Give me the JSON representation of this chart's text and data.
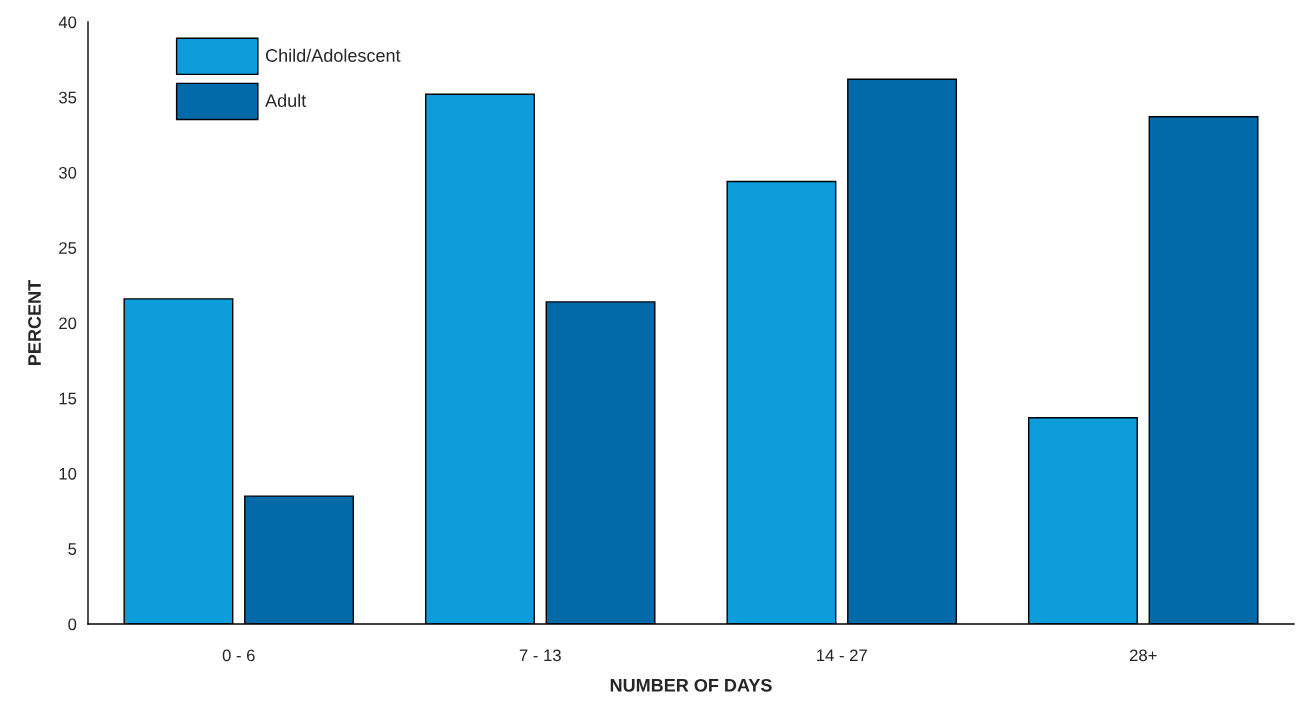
{
  "chart_data": {
    "type": "bar",
    "xlabel": "NUMBER OF DAYS",
    "ylabel": "PERCENT",
    "categories": [
      "0 - 6",
      "7 - 13",
      "14 - 27",
      "28+"
    ],
    "series": [
      {
        "name": "Child/Adolescent",
        "color": "#0d9ddb",
        "values": [
          21.6,
          35.2,
          29.4,
          13.7
        ]
      },
      {
        "name": "Adult",
        "color": "#036aaa",
        "values": [
          8.5,
          21.4,
          36.2,
          33.7
        ]
      }
    ],
    "ylim": [
      0,
      40
    ],
    "yticks": [
      0,
      5,
      10,
      15,
      20,
      25,
      30,
      35,
      40
    ],
    "grid": false,
    "legend": "top left"
  }
}
